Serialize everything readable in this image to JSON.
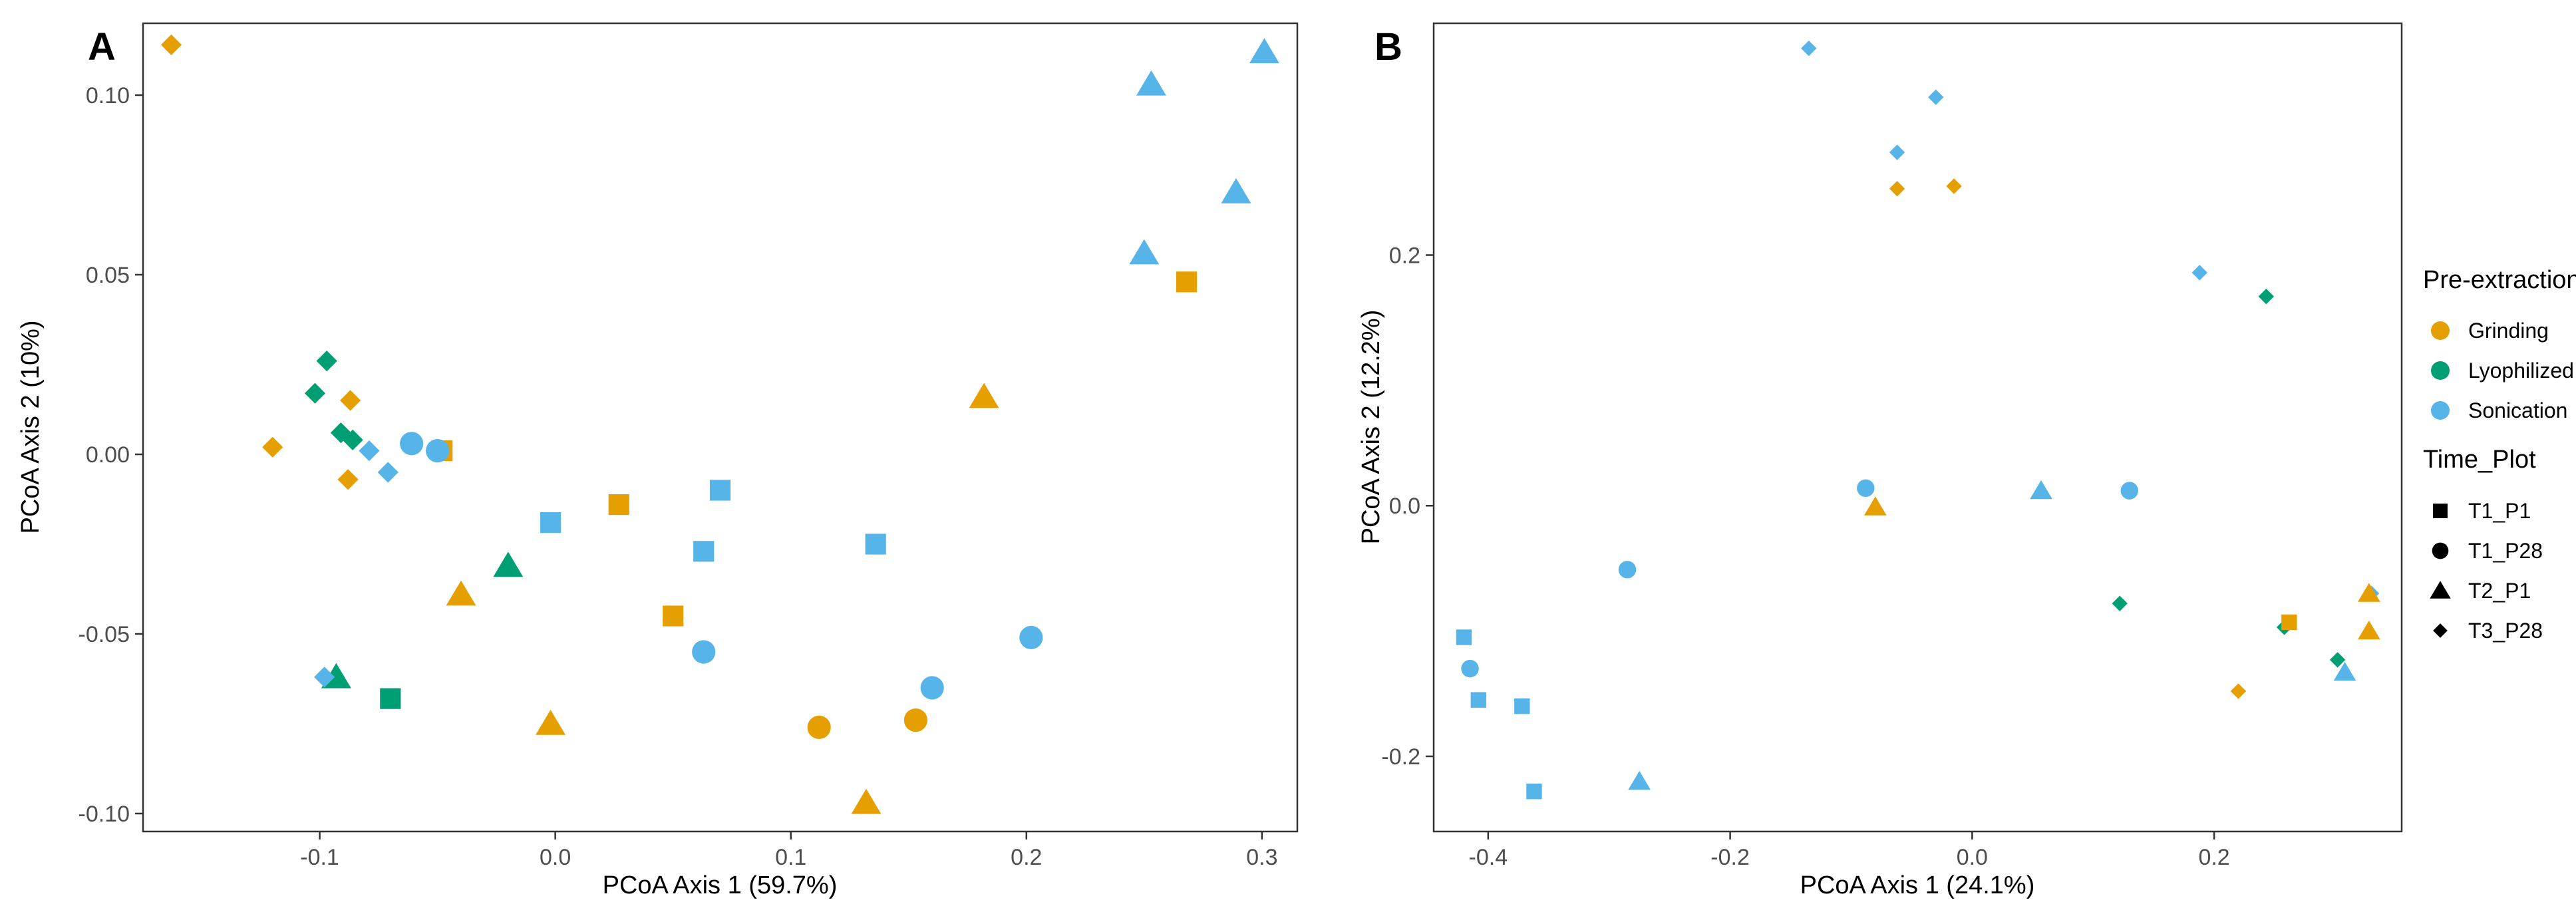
{
  "colors": {
    "Grinding": "#E69F00",
    "Lyophilized": "#009E73",
    "Sonication": "#56B4E9",
    "legend_shape": "#000000"
  },
  "legend": {
    "color_title": "Pre-extraction",
    "color_items": [
      "Grinding",
      "Lyophilized",
      "Sonication"
    ],
    "shape_title": "Time_Plot",
    "shape_items": [
      {
        "label": "T1_P1",
        "shape": "square"
      },
      {
        "label": "T1_P28",
        "shape": "circle"
      },
      {
        "label": "T2_P1",
        "shape": "triangle"
      },
      {
        "label": "T3_P28",
        "shape": "diamond"
      }
    ]
  },
  "chart_data": [
    {
      "type": "scatter",
      "panel": "A",
      "title": "",
      "xlabel": "PCoA Axis 1 (59.7%)",
      "ylabel": "PCoA Axis 2 (10%)",
      "xlim": [
        -0.175,
        0.315
      ],
      "ylim": [
        -0.105,
        0.12
      ],
      "xticks": [
        -0.1,
        0.0,
        0.1,
        0.2,
        0.3
      ],
      "xtick_labels": [
        "-0.1",
        "0.0",
        "0.1",
        "0.2",
        "0.3"
      ],
      "yticks": [
        -0.1,
        -0.05,
        0.0,
        0.05,
        0.1
      ],
      "ytick_labels": [
        "-0.10",
        "-0.05",
        "0.00",
        "0.05",
        "0.10"
      ],
      "grid": false,
      "points": [
        {
          "x": -0.163,
          "y": 0.114,
          "group": "Grinding",
          "time": "T3_P28"
        },
        {
          "x": -0.12,
          "y": 0.002,
          "group": "Grinding",
          "time": "T3_P28"
        },
        {
          "x": -0.087,
          "y": 0.015,
          "group": "Grinding",
          "time": "T3_P28"
        },
        {
          "x": -0.088,
          "y": -0.007,
          "group": "Grinding",
          "time": "T3_P28"
        },
        {
          "x": -0.048,
          "y": 0.001,
          "group": "Grinding",
          "time": "T1_P1"
        },
        {
          "x": 0.027,
          "y": -0.014,
          "group": "Grinding",
          "time": "T1_P1"
        },
        {
          "x": 0.05,
          "y": -0.045,
          "group": "Grinding",
          "time": "T1_P1"
        },
        {
          "x": 0.268,
          "y": 0.048,
          "group": "Grinding",
          "time": "T1_P1"
        },
        {
          "x": -0.04,
          "y": -0.039,
          "group": "Grinding",
          "time": "T2_P1"
        },
        {
          "x": -0.002,
          "y": -0.075,
          "group": "Grinding",
          "time": "T2_P1"
        },
        {
          "x": 0.132,
          "y": -0.097,
          "group": "Grinding",
          "time": "T2_P1"
        },
        {
          "x": 0.182,
          "y": 0.016,
          "group": "Grinding",
          "time": "T2_P1"
        },
        {
          "x": 0.112,
          "y": -0.076,
          "group": "Grinding",
          "time": "T1_P28"
        },
        {
          "x": 0.153,
          "y": -0.074,
          "group": "Grinding",
          "time": "T1_P28"
        },
        {
          "x": -0.097,
          "y": 0.026,
          "group": "Lyophilized",
          "time": "T3_P28"
        },
        {
          "x": -0.102,
          "y": 0.017,
          "group": "Lyophilized",
          "time": "T3_P28"
        },
        {
          "x": -0.091,
          "y": 0.006,
          "group": "Lyophilized",
          "time": "T3_P28"
        },
        {
          "x": -0.086,
          "y": 0.004,
          "group": "Lyophilized",
          "time": "T3_P28"
        },
        {
          "x": -0.02,
          "y": -0.031,
          "group": "Lyophilized",
          "time": "T2_P1"
        },
        {
          "x": -0.093,
          "y": -0.062,
          "group": "Lyophilized",
          "time": "T2_P1"
        },
        {
          "x": -0.07,
          "y": -0.068,
          "group": "Lyophilized",
          "time": "T1_P1"
        },
        {
          "x": -0.079,
          "y": 0.001,
          "group": "Sonication",
          "time": "T3_P28"
        },
        {
          "x": -0.071,
          "y": -0.005,
          "group": "Sonication",
          "time": "T3_P28"
        },
        {
          "x": -0.098,
          "y": -0.062,
          "group": "Sonication",
          "time": "T3_P28"
        },
        {
          "x": -0.061,
          "y": 0.003,
          "group": "Sonication",
          "time": "T1_P28"
        },
        {
          "x": -0.05,
          "y": 0.001,
          "group": "Sonication",
          "time": "T1_P28"
        },
        {
          "x": 0.063,
          "y": -0.055,
          "group": "Sonication",
          "time": "T1_P28"
        },
        {
          "x": 0.16,
          "y": -0.065,
          "group": "Sonication",
          "time": "T1_P28"
        },
        {
          "x": 0.202,
          "y": -0.051,
          "group": "Sonication",
          "time": "T1_P28"
        },
        {
          "x": -0.002,
          "y": -0.019,
          "group": "Sonication",
          "time": "T1_P1"
        },
        {
          "x": 0.063,
          "y": -0.027,
          "group": "Sonication",
          "time": "T1_P1"
        },
        {
          "x": 0.07,
          "y": -0.01,
          "group": "Sonication",
          "time": "T1_P1"
        },
        {
          "x": 0.136,
          "y": -0.025,
          "group": "Sonication",
          "time": "T1_P1"
        },
        {
          "x": 0.25,
          "y": 0.056,
          "group": "Sonication",
          "time": "T2_P1"
        },
        {
          "x": 0.253,
          "y": 0.103,
          "group": "Sonication",
          "time": "T2_P1"
        },
        {
          "x": 0.289,
          "y": 0.073,
          "group": "Sonication",
          "time": "T2_P1"
        },
        {
          "x": 0.301,
          "y": 0.112,
          "group": "Sonication",
          "time": "T2_P1"
        }
      ]
    },
    {
      "type": "scatter",
      "panel": "B",
      "title": "",
      "xlabel": "PCoA Axis 1 (24.1%)",
      "ylabel": "PCoA Axis 2 (12.2%)",
      "xlim": [
        -0.445,
        0.355
      ],
      "ylim": [
        -0.26,
        0.385
      ],
      "xticks": [
        -0.4,
        -0.2,
        0.0,
        0.2
      ],
      "xtick_labels": [
        "-0.4",
        "-0.2",
        "0.0",
        "0.2"
      ],
      "yticks": [
        -0.2,
        0.0,
        0.2
      ],
      "ytick_labels": [
        "-0.2",
        "0.0",
        "0.2"
      ],
      "grid": false,
      "points": [
        {
          "x": -0.135,
          "y": 0.365,
          "group": "Sonication",
          "time": "T3_P28"
        },
        {
          "x": -0.03,
          "y": 0.326,
          "group": "Sonication",
          "time": "T3_P28"
        },
        {
          "x": -0.062,
          "y": 0.282,
          "group": "Sonication",
          "time": "T3_P28"
        },
        {
          "x": 0.188,
          "y": 0.186,
          "group": "Sonication",
          "time": "T3_P28"
        },
        {
          "x": 0.33,
          "y": -0.07,
          "group": "Sonication",
          "time": "T3_P28"
        },
        {
          "x": -0.062,
          "y": 0.253,
          "group": "Grinding",
          "time": "T3_P28"
        },
        {
          "x": -0.015,
          "y": 0.255,
          "group": "Grinding",
          "time": "T3_P28"
        },
        {
          "x": 0.22,
          "y": -0.148,
          "group": "Grinding",
          "time": "T3_P28"
        },
        {
          "x": 0.243,
          "y": 0.167,
          "group": "Lyophilized",
          "time": "T3_P28"
        },
        {
          "x": 0.122,
          "y": -0.078,
          "group": "Lyophilized",
          "time": "T3_P28"
        },
        {
          "x": 0.258,
          "y": -0.097,
          "group": "Lyophilized",
          "time": "T3_P28"
        },
        {
          "x": 0.302,
          "y": -0.123,
          "group": "Lyophilized",
          "time": "T3_P28"
        },
        {
          "x": -0.088,
          "y": 0.014,
          "group": "Sonication",
          "time": "T1_P28"
        },
        {
          "x": 0.13,
          "y": 0.012,
          "group": "Sonication",
          "time": "T1_P28"
        },
        {
          "x": -0.285,
          "y": -0.051,
          "group": "Sonication",
          "time": "T1_P28"
        },
        {
          "x": -0.415,
          "y": -0.13,
          "group": "Sonication",
          "time": "T1_P28"
        },
        {
          "x": -0.08,
          "y": -0.001,
          "group": "Grinding",
          "time": "T2_P1"
        },
        {
          "x": 0.328,
          "y": -0.07,
          "group": "Grinding",
          "time": "T2_P1"
        },
        {
          "x": 0.328,
          "y": -0.1,
          "group": "Grinding",
          "time": "T2_P1"
        },
        {
          "x": 0.057,
          "y": 0.012,
          "group": "Sonication",
          "time": "T2_P1"
        },
        {
          "x": -0.275,
          "y": -0.22,
          "group": "Sonication",
          "time": "T2_P1"
        },
        {
          "x": 0.308,
          "y": -0.133,
          "group": "Sonication",
          "time": "T2_P1"
        },
        {
          "x": 0.262,
          "y": -0.093,
          "group": "Grinding",
          "time": "T1_P1"
        },
        {
          "x": -0.42,
          "y": -0.105,
          "group": "Sonication",
          "time": "T1_P1"
        },
        {
          "x": -0.408,
          "y": -0.155,
          "group": "Sonication",
          "time": "T1_P1"
        },
        {
          "x": -0.372,
          "y": -0.16,
          "group": "Sonication",
          "time": "T1_P1"
        },
        {
          "x": -0.362,
          "y": -0.228,
          "group": "Sonication",
          "time": "T1_P1"
        }
      ]
    }
  ]
}
